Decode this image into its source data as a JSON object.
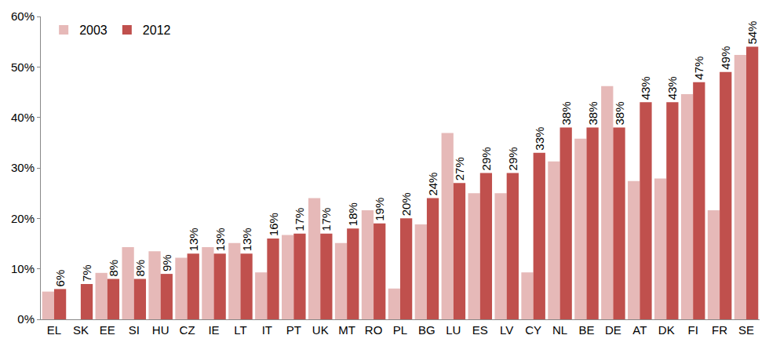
{
  "chart_data": {
    "type": "bar",
    "categories": [
      "EL",
      "SK",
      "EE",
      "SI",
      "HU",
      "CZ",
      "IE",
      "LT",
      "IT",
      "PT",
      "UK",
      "MT",
      "RO",
      "PL",
      "BG",
      "LU",
      "ES",
      "LV",
      "CY",
      "NL",
      "BE",
      "DE",
      "AT",
      "DK",
      "FI",
      "FR",
      "SE"
    ],
    "series": [
      {
        "name": "2003",
        "color": "#e6b9b8",
        "values": [
          5.5,
          null,
          9.2,
          14.3,
          13.5,
          12.2,
          14.3,
          15.1,
          9.3,
          16.7,
          24,
          15.1,
          21.6,
          6.1,
          18.8,
          36.9,
          25,
          25,
          9.3,
          31.3,
          35.8,
          46.2,
          27.4,
          27.9,
          44.6,
          21.6,
          52.4
        ]
      },
      {
        "name": "2012",
        "color": "#c0504d",
        "data_labels": true,
        "values": [
          6,
          7,
          8,
          8,
          9,
          13,
          13,
          13,
          16,
          17,
          17,
          18,
          19,
          20,
          24,
          27,
          29,
          29,
          33,
          38,
          38,
          38,
          43,
          43,
          47,
          49,
          54
        ],
        "value_labels": [
          "6%",
          "7%",
          "8%",
          "8%",
          "9%",
          "13%",
          "13%",
          "13%",
          "16%",
          "17%",
          "17%",
          "18%",
          "19%",
          "20%",
          "24%",
          "27%",
          "29%",
          "29%",
          "33%",
          "38%",
          "38%",
          "38%",
          "43%",
          "43%",
          "47%",
          "49%",
          "54%"
        ]
      }
    ],
    "ylim": [
      0,
      60
    ],
    "yticks": [
      {
        "value": 0,
        "label": "0%"
      },
      {
        "value": 10,
        "label": "10%"
      },
      {
        "value": 20,
        "label": "20%"
      },
      {
        "value": 30,
        "label": "30%"
      },
      {
        "value": 40,
        "label": "40%"
      },
      {
        "value": 50,
        "label": "50%"
      },
      {
        "value": 60,
        "label": "60%"
      }
    ],
    "grid": false,
    "legend": "upper left"
  }
}
